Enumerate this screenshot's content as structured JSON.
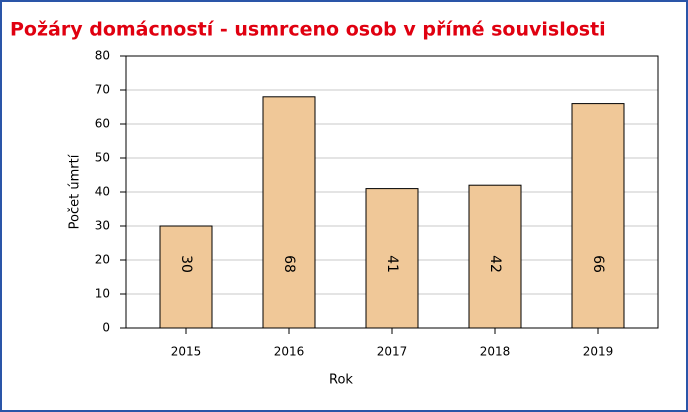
{
  "chart_data": {
    "type": "bar",
    "title": "Požáry domácností - usmrceno osob v přímé souvislosti",
    "categories": [
      "2015",
      "2016",
      "2017",
      "2018",
      "2019"
    ],
    "values": [
      30,
      68,
      41,
      42,
      66
    ],
    "color": "#f0c898",
    "ylim": [
      0,
      80
    ],
    "yticks": [
      0,
      10,
      20,
      30,
      40,
      50,
      60,
      70,
      80
    ],
    "grid": true,
    "xlabel": "Rok",
    "ylabel": "Počet úmrtí"
  }
}
